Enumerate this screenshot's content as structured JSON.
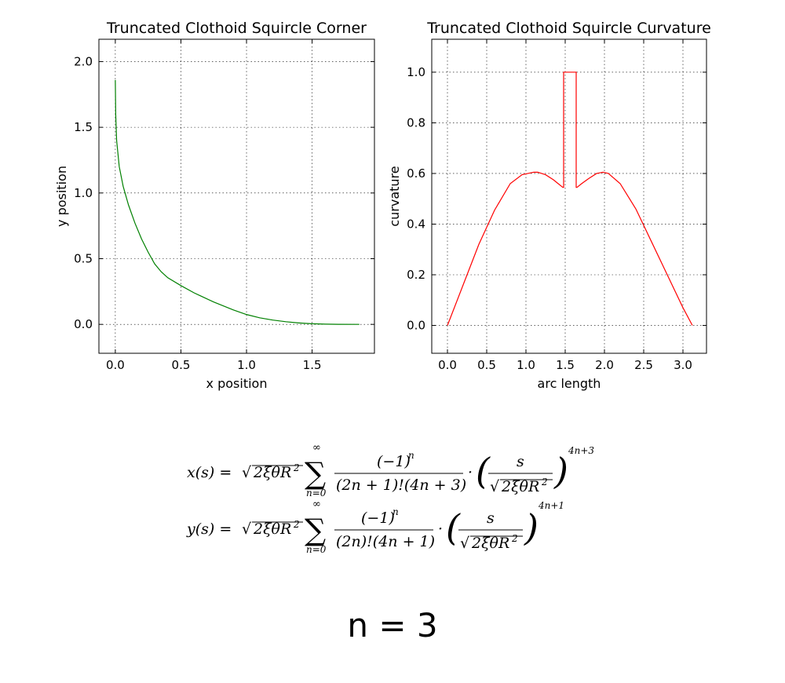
{
  "chart_data": [
    {
      "type": "line",
      "title": "Truncated Clothoid Squircle Corner",
      "xlabel": "x position",
      "ylabel": "y position",
      "xlim": [
        -0.125,
        1.975
      ],
      "ylim": [
        -0.22,
        2.17
      ],
      "xticks": [
        0.0,
        0.5,
        1.0,
        1.5
      ],
      "xtick_labels": [
        "0.0",
        "0.5",
        "1.0",
        "1.5"
      ],
      "yticks": [
        0.0,
        0.5,
        1.0,
        1.5,
        2.0
      ],
      "ytick_labels": [
        "0.0",
        "0.5",
        "1.0",
        "1.5",
        "2.0"
      ],
      "grid": true,
      "series": [
        {
          "color": "#008000",
          "x": [
            0.0,
            0.003,
            0.01,
            0.03,
            0.06,
            0.1,
            0.15,
            0.2,
            0.25,
            0.3,
            0.35,
            0.4,
            0.5,
            0.6,
            0.75,
            0.9,
            1.0,
            1.1,
            1.2,
            1.3,
            1.4,
            1.5,
            1.6,
            1.7,
            1.86
          ],
          "y": [
            1.86,
            1.6,
            1.4,
            1.2,
            1.05,
            0.91,
            0.77,
            0.65,
            0.55,
            0.46,
            0.4,
            0.355,
            0.295,
            0.24,
            0.17,
            0.11,
            0.075,
            0.05,
            0.033,
            0.02,
            0.011,
            0.005,
            0.002,
            0.0005,
            0.0
          ]
        }
      ]
    },
    {
      "type": "line",
      "title": "Truncated Clothoid Squircle Curvature",
      "xlabel": "arc length",
      "ylabel": "curvature",
      "xlim": [
        -0.2,
        3.3
      ],
      "ylim": [
        -0.11,
        1.13
      ],
      "xticks": [
        0.0,
        0.5,
        1.0,
        1.5,
        2.0,
        2.5,
        3.0
      ],
      "xtick_labels": [
        "0.0",
        "0.5",
        "1.0",
        "1.5",
        "2.0",
        "2.5",
        "3.0"
      ],
      "yticks": [
        0.0,
        0.2,
        0.4,
        0.6,
        0.8,
        1.0
      ],
      "ytick_labels": [
        "0.0",
        "0.2",
        "0.4",
        "0.6",
        "0.8",
        "1.0"
      ],
      "grid": true,
      "series": [
        {
          "color": "#ff0000",
          "x": [
            0.0,
            0.2,
            0.4,
            0.6,
            0.8,
            0.95,
            1.1,
            1.15,
            1.25,
            1.35,
            1.41,
            1.47,
            1.48,
            1.48,
            1.64,
            1.64,
            1.65,
            1.71,
            1.8,
            1.9,
            1.98,
            2.05,
            2.2,
            2.4,
            2.6,
            2.8,
            3.0,
            3.12
          ],
          "y": [
            0.0,
            0.16,
            0.32,
            0.455,
            0.56,
            0.595,
            0.605,
            0.605,
            0.595,
            0.575,
            0.56,
            0.545,
            0.545,
            1.0,
            1.0,
            0.545,
            0.545,
            0.56,
            0.58,
            0.6,
            0.605,
            0.6,
            0.56,
            0.46,
            0.33,
            0.2,
            0.07,
            0.0
          ]
        }
      ]
    }
  ],
  "formula": {
    "x_line": "x(s) = √2ξθR² ∑ₙ₌₀^∞ (−1)ⁿ / ((2n+1)!(4n+3)) · ( s / √2ξθR² )^(4n+3)",
    "y_line": "y(s) = √2ξθR² ∑ₙ₌₀^∞ (−1)ⁿ / ((2n)!(4n+1)) · ( s / √2ξθR² )^(4n+1)"
  },
  "n_label": "n = 3"
}
